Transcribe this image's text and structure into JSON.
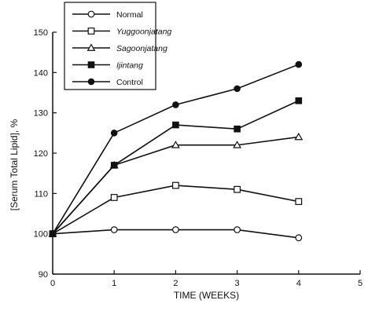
{
  "chart_data": {
    "type": "line",
    "xlabel": "TIME (WEEKS)",
    "ylabel": "[Serum Total Lipid], %",
    "xlim": [
      0,
      5
    ],
    "ylim": [
      90,
      150
    ],
    "xticks": [
      0,
      1,
      2,
      3,
      4,
      5
    ],
    "yticks": [
      90,
      100,
      110,
      120,
      130,
      140,
      150
    ],
    "x": [
      0,
      1,
      2,
      3,
      4
    ],
    "grid": false,
    "legend_position": "top-left",
    "series": [
      {
        "name": "Normal",
        "marker": "circle-open",
        "italic": false,
        "values": [
          100,
          101,
          101,
          101,
          99
        ]
      },
      {
        "name": "Yuggoonjatang",
        "marker": "square-open",
        "italic": true,
        "values": [
          100,
          109,
          112,
          111,
          108
        ]
      },
      {
        "name": "Sagoonjatang",
        "marker": "triangle-open",
        "italic": true,
        "values": [
          100,
          117,
          122,
          122,
          124
        ]
      },
      {
        "name": "Ijintang",
        "marker": "square-filled",
        "italic": true,
        "values": [
          100,
          117,
          127,
          126,
          133
        ]
      },
      {
        "name": "Control",
        "marker": "circle-filled",
        "italic": false,
        "values": [
          100,
          125,
          132,
          136,
          142
        ]
      }
    ]
  }
}
